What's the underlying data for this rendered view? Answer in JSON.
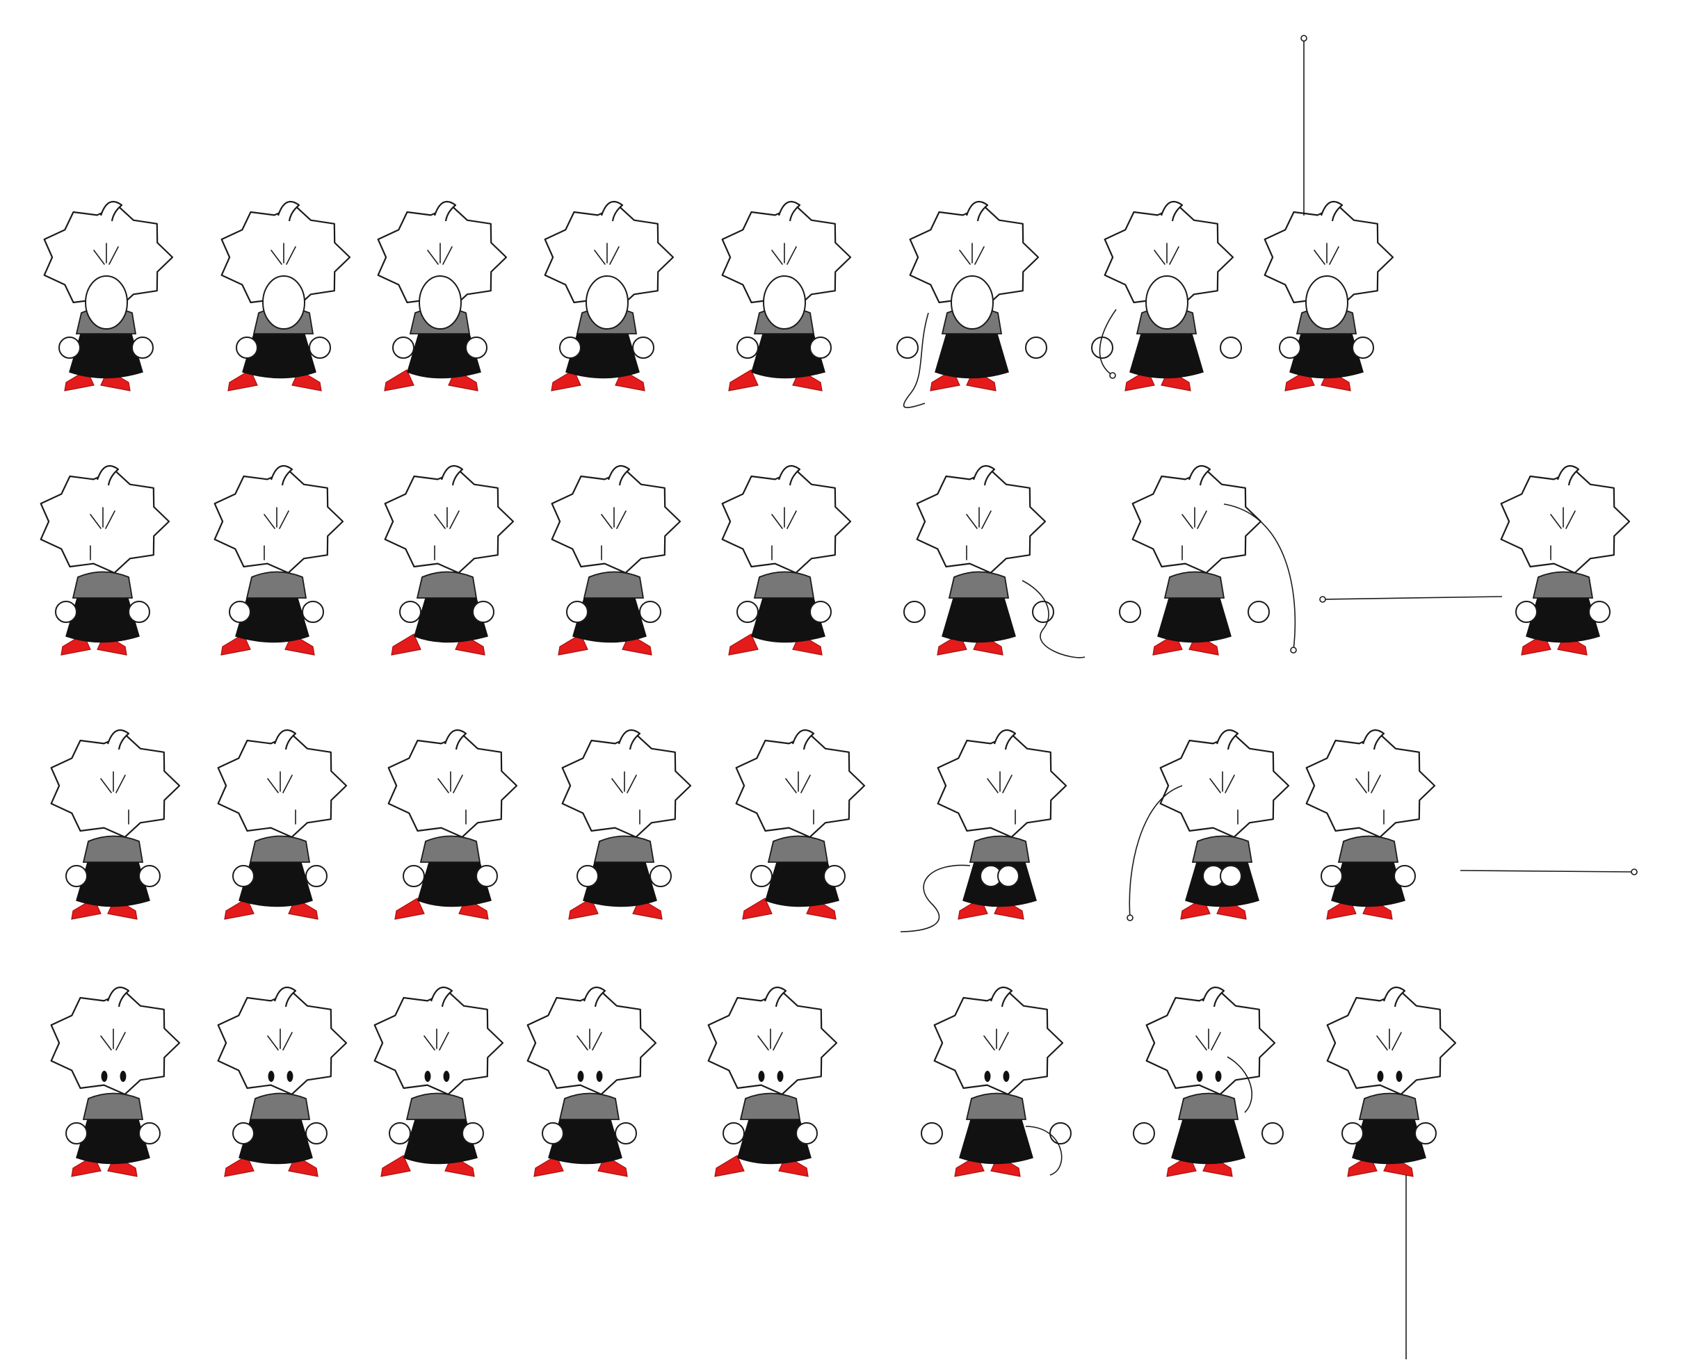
{
  "sheet": {
    "background": "#ffffff",
    "colors": {
      "ink": "#1a1a1a",
      "dress": "#111111",
      "sleeve": "#777777",
      "shoes": "#e51b1b"
    },
    "rows": [
      {
        "facing": "back",
        "frames": [
          "stand",
          "walk",
          "walk",
          "walk",
          "walk",
          "throw",
          "throw",
          "hang"
        ]
      },
      {
        "facing": "left",
        "frames": [
          "stand",
          "walk",
          "walk",
          "walk",
          "walk",
          "throw",
          "throw",
          "pull"
        ]
      },
      {
        "facing": "right",
        "frames": [
          "stand",
          "walk",
          "walk",
          "walk",
          "walk",
          "throw",
          "throw",
          "pull"
        ]
      },
      {
        "facing": "front",
        "frames": [
          "stand",
          "walk",
          "walk",
          "walk",
          "walk",
          "throw",
          "throw",
          "hang"
        ]
      }
    ]
  }
}
